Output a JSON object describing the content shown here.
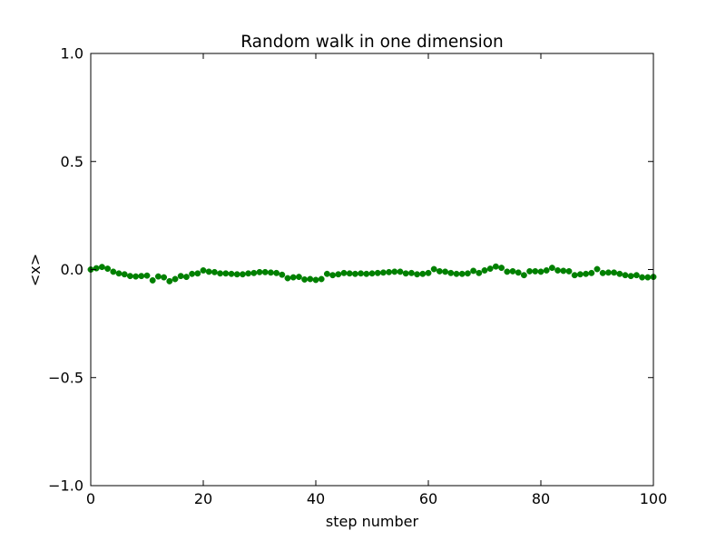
{
  "chart_data": {
    "type": "scatter",
    "title": "Random walk in one dimension",
    "xlabel": "step number",
    "ylabel": "<x>",
    "xlim": [
      0,
      100
    ],
    "ylim": [
      -1.0,
      1.0
    ],
    "grid": false,
    "x_ticks": [
      {
        "value": 0,
        "label": "0"
      },
      {
        "value": 20,
        "label": "20"
      },
      {
        "value": 40,
        "label": "40"
      },
      {
        "value": 60,
        "label": "60"
      },
      {
        "value": 80,
        "label": "80"
      },
      {
        "value": 100,
        "label": "100"
      }
    ],
    "y_ticks": [
      {
        "value": 1.0,
        "label": "1.0"
      },
      {
        "value": 0.5,
        "label": "0.5"
      },
      {
        "value": 0.0,
        "label": "0.0"
      },
      {
        "value": -0.5,
        "label": "−0.5"
      },
      {
        "value": -1.0,
        "label": "−1.0"
      }
    ],
    "series": [
      {
        "name": "<x>",
        "color": "#008000",
        "marker": "circle",
        "x": [
          0,
          1,
          2,
          3,
          4,
          5,
          6,
          7,
          8,
          9,
          10,
          11,
          12,
          13,
          14,
          15,
          16,
          17,
          18,
          19,
          20,
          21,
          22,
          23,
          24,
          25,
          26,
          27,
          28,
          29,
          30,
          31,
          32,
          33,
          34,
          35,
          36,
          37,
          38,
          39,
          40,
          41,
          42,
          43,
          44,
          45,
          46,
          47,
          48,
          49,
          50,
          51,
          52,
          53,
          54,
          55,
          56,
          57,
          58,
          59,
          60,
          61,
          62,
          63,
          64,
          65,
          66,
          67,
          68,
          69,
          70,
          71,
          72,
          73,
          74,
          75,
          76,
          77,
          78,
          79,
          80,
          81,
          82,
          83,
          84,
          85,
          86,
          87,
          88,
          89,
          90,
          91,
          92,
          93,
          94,
          95,
          96,
          97,
          98,
          99,
          100
        ],
        "values": [
          0.0,
          0.006,
          0.012,
          0.004,
          -0.01,
          -0.018,
          -0.022,
          -0.03,
          -0.032,
          -0.03,
          -0.028,
          -0.05,
          -0.032,
          -0.036,
          -0.054,
          -0.044,
          -0.03,
          -0.034,
          -0.02,
          -0.018,
          -0.004,
          -0.01,
          -0.012,
          -0.018,
          -0.018,
          -0.02,
          -0.022,
          -0.022,
          -0.018,
          -0.016,
          -0.012,
          -0.012,
          -0.014,
          -0.016,
          -0.024,
          -0.04,
          -0.036,
          -0.034,
          -0.046,
          -0.044,
          -0.048,
          -0.044,
          -0.02,
          -0.026,
          -0.022,
          -0.016,
          -0.018,
          -0.02,
          -0.018,
          -0.02,
          -0.018,
          -0.016,
          -0.014,
          -0.012,
          -0.01,
          -0.01,
          -0.018,
          -0.016,
          -0.022,
          -0.02,
          -0.016,
          0.002,
          -0.008,
          -0.01,
          -0.016,
          -0.02,
          -0.02,
          -0.018,
          -0.006,
          -0.016,
          -0.004,
          0.004,
          0.014,
          0.008,
          -0.01,
          -0.008,
          -0.014,
          -0.026,
          -0.008,
          -0.008,
          -0.01,
          -0.004,
          0.008,
          -0.004,
          -0.006,
          -0.008,
          -0.026,
          -0.022,
          -0.02,
          -0.016,
          0.002,
          -0.016,
          -0.014,
          -0.014,
          -0.02,
          -0.026,
          -0.03,
          -0.026,
          -0.036,
          -0.036,
          -0.034
        ]
      }
    ]
  }
}
